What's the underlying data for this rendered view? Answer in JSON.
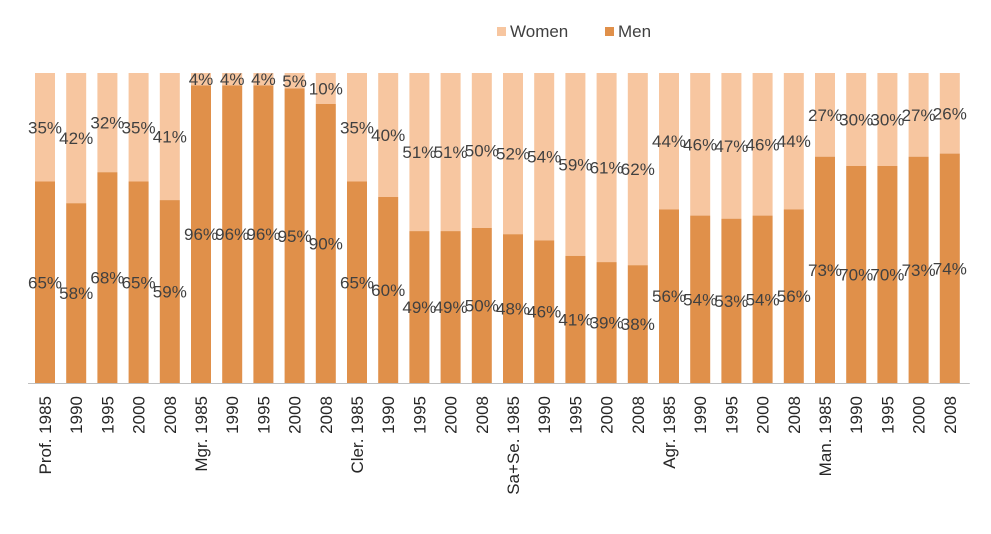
{
  "chart_data": {
    "type": "bar",
    "stacked": true,
    "percent_stacked": true,
    "legend_position": "top",
    "grid": false,
    "categories": [
      "Prof. 1985",
      "1990",
      "1995",
      "2000",
      "2008",
      "Mgr. 1985",
      "1990",
      "1995",
      "2000",
      "2008",
      "Cler. 1985",
      "1990",
      "1995",
      "2000",
      "2008",
      "Sa+Se. 1985",
      "1990",
      "1995",
      "2000",
      "2008",
      "Agr. 1985",
      "1990",
      "1995",
      "2000",
      "2008",
      "Man. 1985",
      "1990",
      "1995",
      "2000",
      "2008"
    ],
    "series": [
      {
        "name": "Men",
        "color": "#e0904a",
        "values": [
          65,
          58,
          68,
          65,
          59,
          96,
          96,
          96,
          95,
          90,
          65,
          60,
          49,
          49,
          50,
          48,
          46,
          41,
          39,
          38,
          56,
          54,
          53,
          54,
          56,
          73,
          70,
          70,
          73,
          74
        ],
        "labels": [
          "65%",
          "58%",
          "68%",
          "65%",
          "59%",
          "96%",
          "96%",
          "96%",
          "95%",
          "90%",
          "65%",
          "60%",
          "49%",
          "49%",
          "50%",
          "48%",
          "46%",
          "41%",
          "39%",
          "38%",
          "56%",
          "54%",
          "53%",
          "54%",
          "56%",
          "73%",
          "70%",
          "70%",
          "73%",
          "74%"
        ]
      },
      {
        "name": "Women",
        "color": "#f7c6a0",
        "values": [
          35,
          42,
          32,
          35,
          41,
          4,
          4,
          4,
          5,
          10,
          35,
          40,
          51,
          51,
          50,
          52,
          54,
          59,
          61,
          62,
          44,
          46,
          47,
          46,
          44,
          27,
          30,
          30,
          27,
          26
        ],
        "labels": [
          "35%",
          "42%",
          "32%",
          "35%",
          "41%",
          "4%",
          "4%",
          "4%",
          "5%",
          "10%",
          "35%",
          "40%",
          "51%",
          "51%",
          "50%",
          "52%",
          "54%",
          "59%",
          "61%",
          "62%",
          "44%",
          "46%",
          "47%",
          "46%",
          "44%",
          "27%",
          "30%",
          "30%",
          "27%",
          "26%"
        ]
      }
    ],
    "legend": [
      {
        "name": "Women",
        "color": "#f7c6a0"
      },
      {
        "name": "Men",
        "color": "#e0904a"
      }
    ],
    "ylim": [
      0,
      100
    ],
    "axis_line_color": "#bfbfbf"
  }
}
